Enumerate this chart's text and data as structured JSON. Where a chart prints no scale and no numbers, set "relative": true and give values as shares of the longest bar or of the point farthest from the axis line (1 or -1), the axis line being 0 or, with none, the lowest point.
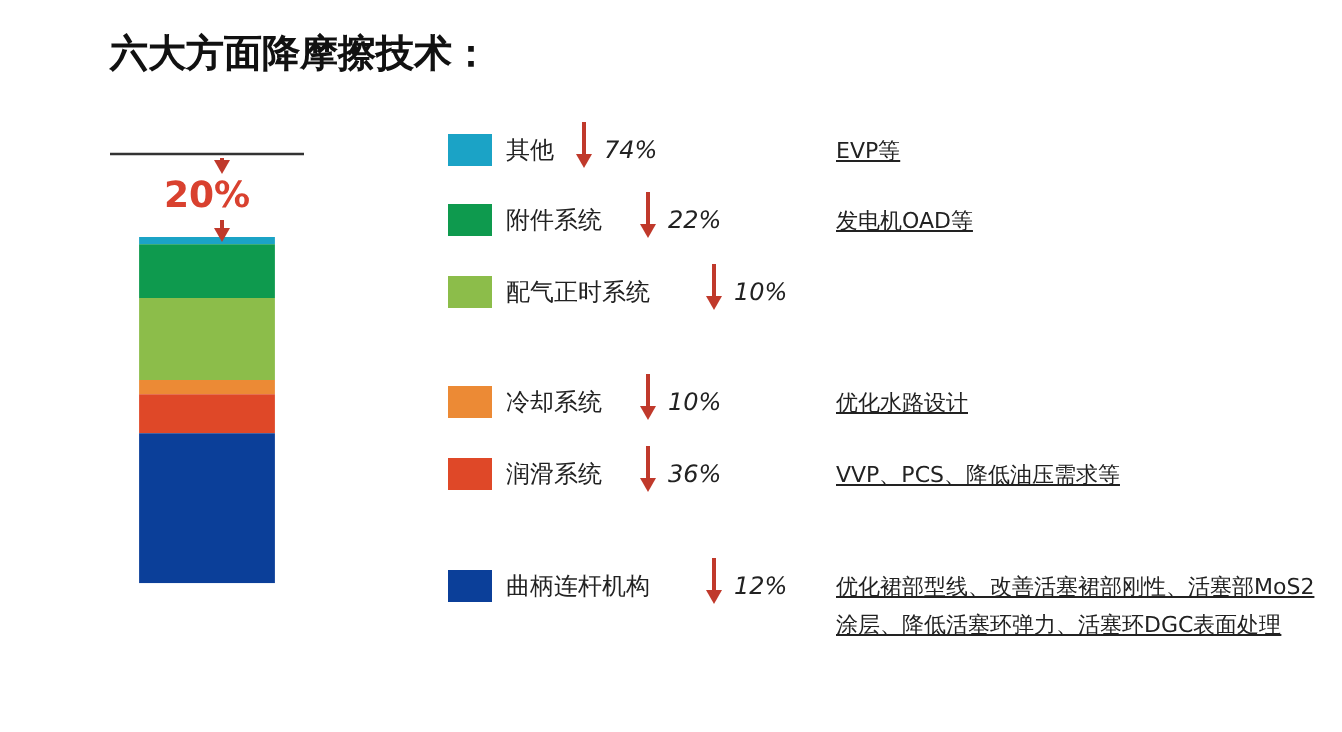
{
  "chart_data": {
    "type": "bar",
    "title": "六大方面降摩擦技术：",
    "categories": [
      null
    ],
    "stacked": true,
    "relative": true,
    "legend": "right",
    "series": [
      {
        "name": "曲柄连杆机构",
        "color": "#0b3f99",
        "values": [
          0.433
        ]
      },
      {
        "name": "润滑系统",
        "color": "#df4828",
        "values": [
          0.113
        ]
      },
      {
        "name": "冷却系统",
        "color": "#ec8a35",
        "values": [
          0.041
        ]
      },
      {
        "name": "配气正时系统",
        "color": "#8cbd4a",
        "values": [
          0.237
        ]
      },
      {
        "name": "附件系统",
        "color": "#0e9a4e",
        "values": [
          0.155
        ]
      },
      {
        "name": "其他",
        "color": "#1ba3c6",
        "values": [
          0.021
        ]
      }
    ],
    "ref_lines": [
      {
        "axis": "y",
        "value": 1.24,
        "color": "#333333"
      }
    ],
    "annotations": [
      "20%",
      "74%",
      "22%",
      "10%",
      "10%",
      "36%",
      "12%",
      "EVP等",
      "发电机OAD等",
      "优化水路设计",
      "VVP、PCS、降低油压需求等",
      "优化裙部型线、改善活塞裙部刚性、活塞部MoS2涂层、降低活塞环弹力、活塞环DGC表面处理"
    ]
  }
}
